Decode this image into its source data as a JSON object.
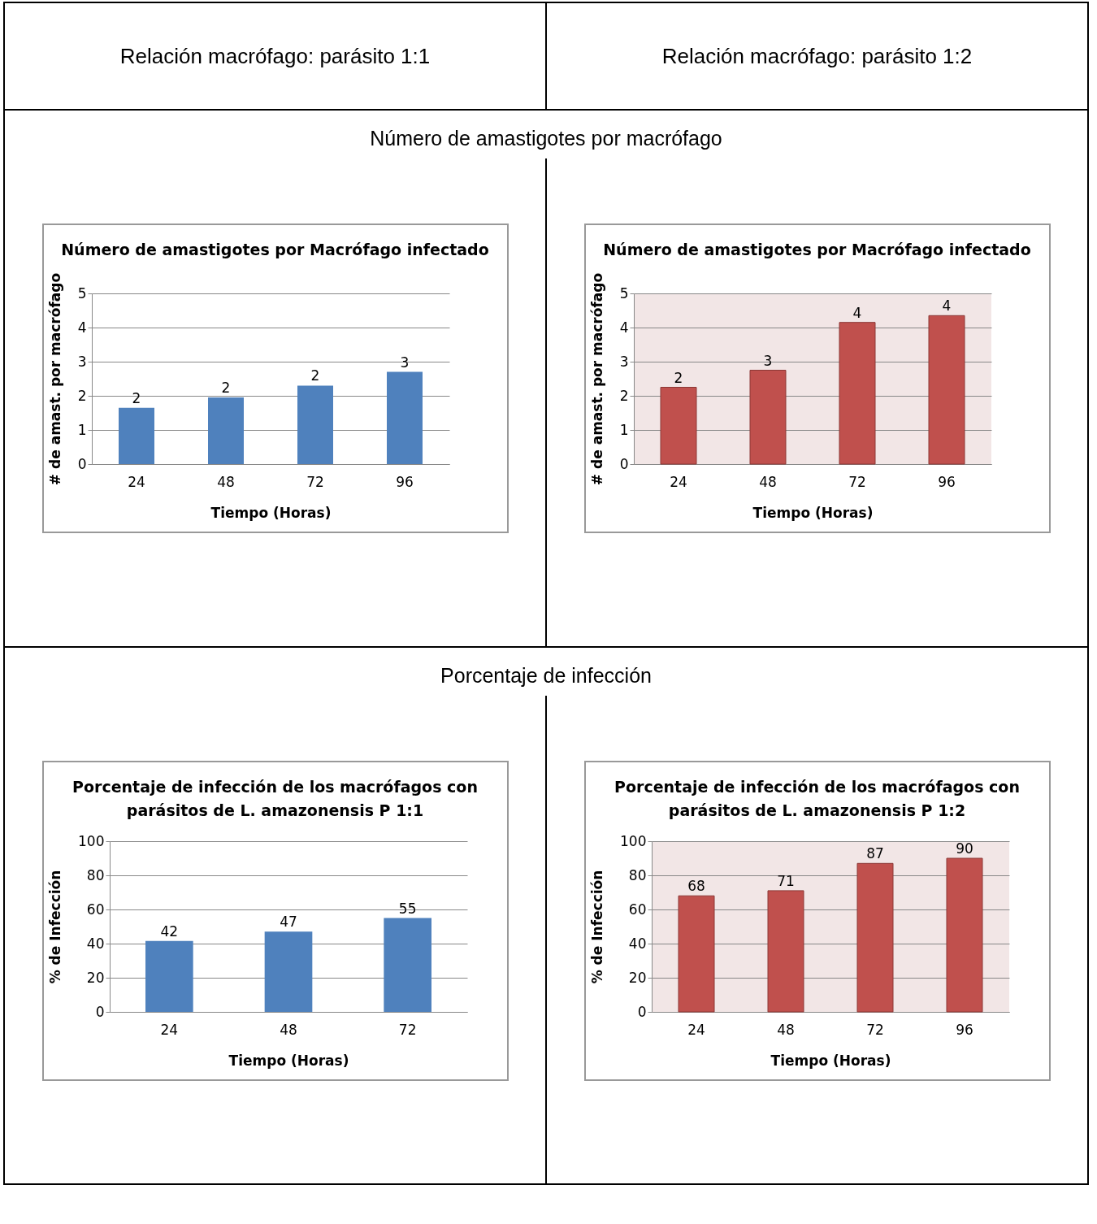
{
  "chart_data": [
    {
      "type": "other",
      "annotations": [
        "Relación macrófago: parásito  1:1",
        "Relación macrófago: parásito  1:2",
        "Número de  amastigotes por macrófago",
        "Porcentaje de infección"
      ]
    },
    {
      "type": "bar",
      "title": "Número de  amastigotes por Macrófago infectado",
      "xlabel": "Tiempo (Horas)",
      "ylabel": "# de amast. por macrófago",
      "categories": [
        "24",
        "48",
        "72",
        "96"
      ],
      "values": [
        1.65,
        1.95,
        2.3,
        2.7
      ],
      "value_labels": [
        "2",
        "2",
        "2",
        "3"
      ],
      "color": "#4f81bd",
      "ylim": [
        0,
        5
      ],
      "yticks": [
        0,
        1,
        2,
        3,
        4,
        5
      ],
      "grid": "y"
    },
    {
      "type": "bar",
      "title": "Número de amastigotes por Macrófago infectado",
      "xlabel": "Tiempo (Horas)",
      "ylabel": "# de amast. por macrófago",
      "categories": [
        "24",
        "48",
        "72",
        "96"
      ],
      "values": [
        2.25,
        2.75,
        4.15,
        4.35
      ],
      "value_labels": [
        "2",
        "3",
        "4",
        "4"
      ],
      "color": "#c0504d",
      "ylim": [
        0,
        5
      ],
      "yticks": [
        0,
        1,
        2,
        3,
        4,
        5
      ],
      "grid": "y"
    },
    {
      "type": "bar",
      "title": "Porcentaje de infección de los macrófagos con parásitos de L. amazonensis  P 1:1",
      "xlabel": "Tiempo (Horas)",
      "ylabel": "% de Infección",
      "categories": [
        "24",
        "48",
        "72"
      ],
      "values": [
        41.5,
        47,
        55
      ],
      "value_labels": [
        "42",
        "47",
        "55"
      ],
      "color": "#4f81bd",
      "ylim": [
        0,
        100
      ],
      "yticks": [
        0,
        20,
        40,
        60,
        80,
        100
      ],
      "grid": "y"
    },
    {
      "type": "bar",
      "title": "Porcentaje de infección de los macrófagos con parásitos de L. amazonensis  P 1:2",
      "xlabel": "Tiempo (Horas)",
      "ylabel": "% de Infección",
      "categories": [
        "24",
        "48",
        "72",
        "96"
      ],
      "values": [
        68,
        71,
        87,
        90
      ],
      "data_labels": true,
      "color": "#c0504d",
      "ylim": [
        0,
        100
      ],
      "yticks": [
        0,
        20,
        40,
        60,
        80,
        100
      ],
      "grid": "y"
    }
  ]
}
